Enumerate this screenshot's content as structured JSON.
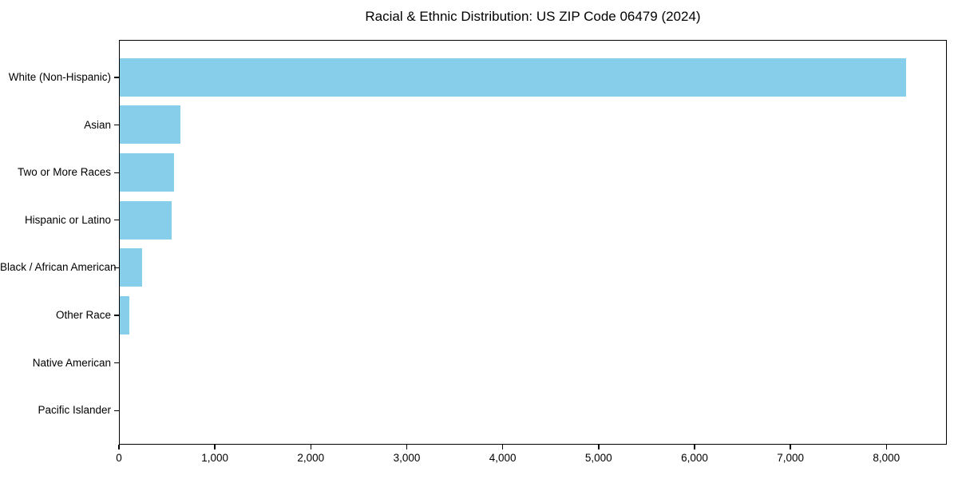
{
  "chart_data": {
    "type": "bar",
    "orientation": "horizontal",
    "title": "Racial & Ethnic Distribution: US ZIP Code 06479 (2024)",
    "categories": [
      "White (Non-Hispanic)",
      "Asian",
      "Two or More Races",
      "Hispanic or Latino",
      "Black / African American",
      "Other Race",
      "Native American",
      "Pacific Islander"
    ],
    "values": [
      8200,
      630,
      570,
      540,
      230,
      100,
      0,
      0
    ],
    "xlabel": "",
    "ylabel": "",
    "xlim": [
      0,
      8630
    ],
    "x_ticks": [
      0,
      1000,
      2000,
      3000,
      4000,
      5000,
      6000,
      7000,
      8000
    ],
    "x_tick_labels": [
      "0",
      "1,000",
      "2,000",
      "3,000",
      "4,000",
      "5,000",
      "6,000",
      "7,000",
      "8,000"
    ],
    "bar_color": "#87CEEB",
    "background_color": "#ffffff",
    "grid": false,
    "legend": "none"
  }
}
